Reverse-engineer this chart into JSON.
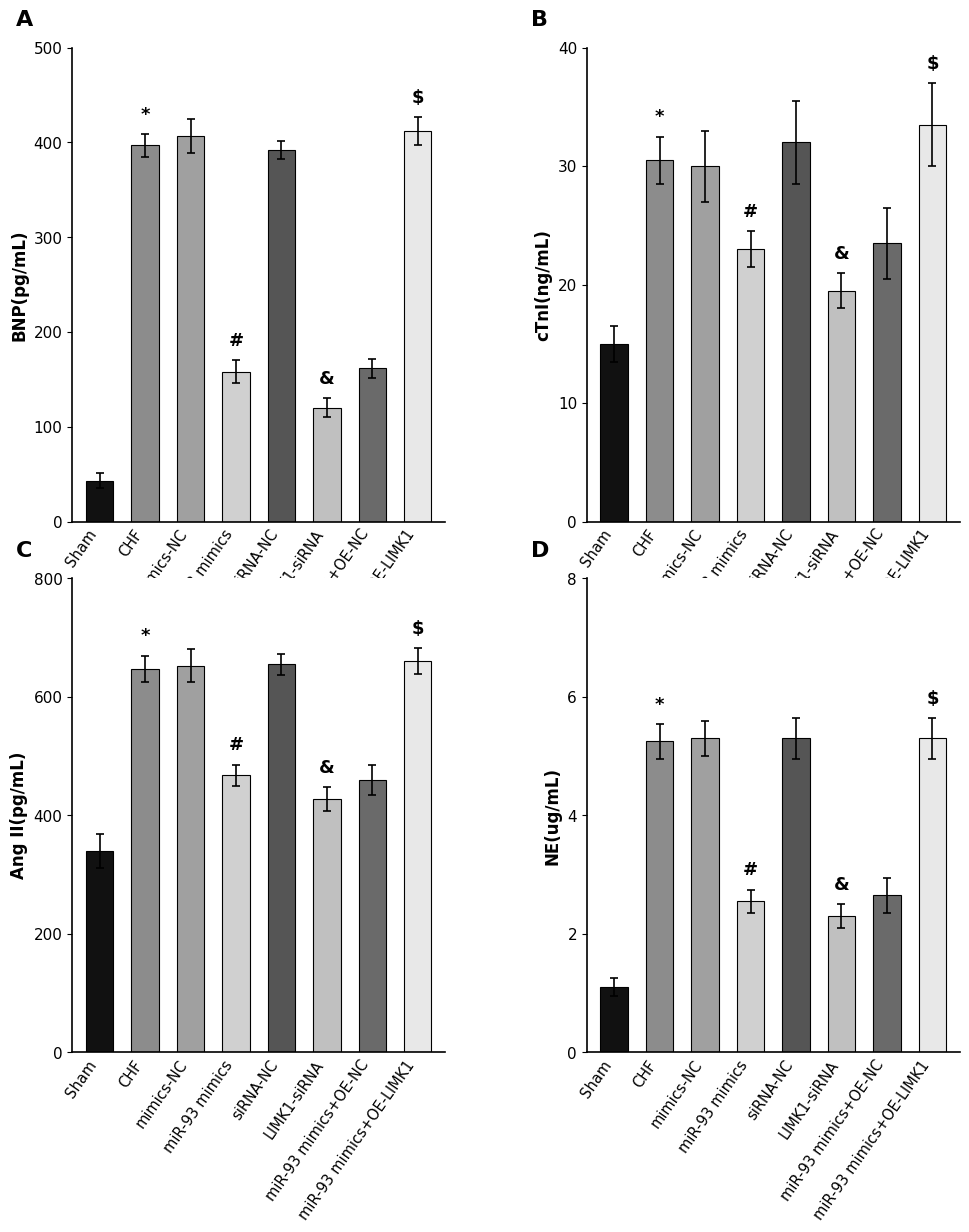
{
  "groups": [
    "Sham",
    "CHF",
    "mimics-NC",
    "miR-93 mimics",
    "siRNA-NC",
    "LIMK1-siRNA",
    "miR-93 mimics+OE-NC",
    "miR-93 mimics+OE-LIMK1"
  ],
  "A": {
    "title": "A",
    "ylabel": "BNP(pg/mL)",
    "ylim": [
      0,
      500
    ],
    "yticks": [
      0,
      100,
      200,
      300,
      400,
      500
    ],
    "values": [
      43,
      397,
      407,
      158,
      392,
      120,
      162,
      412
    ],
    "errors": [
      8,
      12,
      18,
      12,
      10,
      10,
      10,
      15
    ],
    "sig": [
      "",
      "*",
      "",
      "#",
      "",
      "&",
      "",
      "$"
    ]
  },
  "B": {
    "title": "B",
    "ylabel": "cTnI(ng/mL)",
    "ylim": [
      0,
      40
    ],
    "yticks": [
      0,
      10,
      20,
      30,
      40
    ],
    "values": [
      15,
      30.5,
      30,
      23,
      32,
      19.5,
      23.5,
      33.5
    ],
    "errors": [
      1.5,
      2,
      3,
      1.5,
      3.5,
      1.5,
      3,
      3.5
    ],
    "sig": [
      "",
      "*",
      "",
      "#",
      "",
      "&",
      "",
      "$"
    ]
  },
  "C": {
    "title": "C",
    "ylabel": "Ang II(pg/mL)",
    "ylim": [
      0,
      800
    ],
    "yticks": [
      0,
      200,
      400,
      600,
      800
    ],
    "values": [
      340,
      648,
      653,
      468,
      655,
      428,
      460,
      660
    ],
    "errors": [
      28,
      22,
      28,
      18,
      18,
      20,
      25,
      22
    ],
    "sig": [
      "",
      "*",
      "",
      "#",
      "",
      "&",
      "",
      "$"
    ]
  },
  "D": {
    "title": "D",
    "ylabel": "NE(ug/mL)",
    "ylim": [
      0,
      8
    ],
    "yticks": [
      0,
      2,
      4,
      6,
      8
    ],
    "values": [
      1.1,
      5.25,
      5.3,
      2.55,
      5.3,
      2.3,
      2.65,
      5.3
    ],
    "errors": [
      0.15,
      0.3,
      0.3,
      0.2,
      0.35,
      0.2,
      0.3,
      0.35
    ],
    "sig": [
      "",
      "*",
      "",
      "#",
      "",
      "&",
      "",
      "$"
    ]
  },
  "bar_colors": [
    "#111111",
    "#8c8c8c",
    "#a0a0a0",
    "#d0d0d0",
    "#555555",
    "#c0c0c0",
    "#6a6a6a",
    "#e8e8e8"
  ],
  "sig_fontsize": 13,
  "ylabel_fontsize": 12,
  "label_fontsize": 10.5,
  "tick_fontsize": 11,
  "panel_label_fontsize": 16,
  "bar_width": 0.6,
  "capsize": 3,
  "rotation": 55
}
